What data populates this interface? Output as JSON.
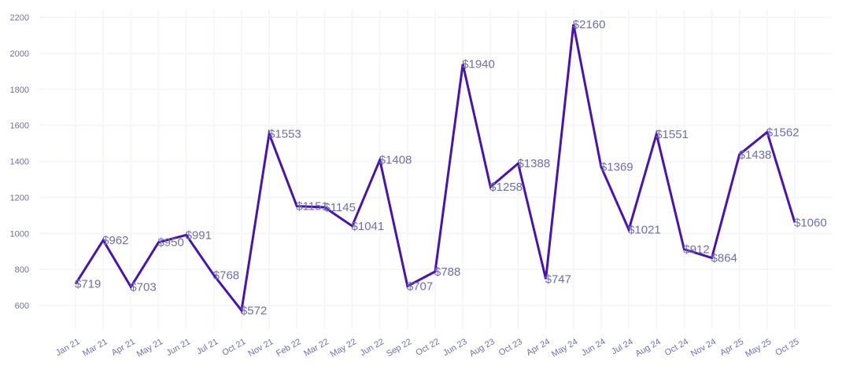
{
  "chart_data": {
    "type": "line",
    "title": "",
    "xlabel": "",
    "ylabel": "",
    "categories": [
      "Jan 21",
      "Mar 21",
      "Apr 21",
      "May 21",
      "Jun 21",
      "Jul 21",
      "Oct 21",
      "Nov 21",
      "Feb 22",
      "Mar 22",
      "May 22",
      "Jun 22",
      "Sep 22",
      "Oct 22",
      "Jun 23",
      "Aug 23",
      "Oct 23",
      "Apr 24",
      "May 24",
      "Jun 24",
      "Jul 24",
      "Aug 24",
      "Oct 24",
      "Nov 24",
      "Apr 25",
      "May 25",
      "Oct 25"
    ],
    "series": [
      {
        "name": "Value",
        "values": [
          719,
          962,
          703,
          950,
          991,
          768,
          572,
          1553,
          1151,
          1145,
          1041,
          1408,
          707,
          788,
          1940,
          1258,
          1388,
          747,
          2160,
          1369,
          1021,
          1551,
          912,
          864,
          1438,
          1562,
          1060
        ]
      }
    ],
    "data_labels": [
      "$719",
      "$962",
      "$703",
      "$950",
      "$991",
      "$768",
      "$572",
      "$1553",
      "$1151",
      "$1145",
      "$1041",
      "$1408",
      "$707",
      "$788",
      "$1940",
      "$1258",
      "$1388",
      "$747",
      "$2160",
      "$1369",
      "$1021",
      "$1551",
      "$912",
      "$864",
      "$1438",
      "$1562",
      "$1060"
    ],
    "yticks": [
      "600",
      "800",
      "1000",
      "1200",
      "1400",
      "1600",
      "1800",
      "2000",
      "2200"
    ],
    "ylim": [
      500,
      2200
    ],
    "grid": true,
    "legend": "none",
    "colors": {
      "line": "#4a14a8",
      "text": "#6e6eae",
      "grid": "#f5f5fc"
    }
  }
}
